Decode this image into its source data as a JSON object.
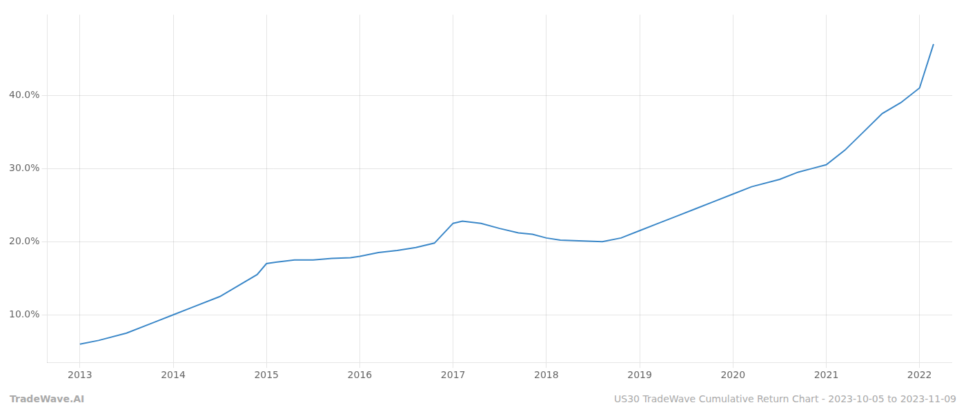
{
  "chart_data": {
    "type": "line",
    "x": [
      2013.0,
      2013.2,
      2013.5,
      2013.8,
      2014.0,
      2014.2,
      2014.5,
      2014.7,
      2014.9,
      2015.0,
      2015.1,
      2015.3,
      2015.5,
      2015.7,
      2015.9,
      2016.0,
      2016.2,
      2016.4,
      2016.6,
      2016.8,
      2017.0,
      2017.1,
      2017.3,
      2017.5,
      2017.7,
      2017.85,
      2018.0,
      2018.15,
      2018.4,
      2018.6,
      2018.8,
      2019.0,
      2019.2,
      2019.4,
      2019.6,
      2019.8,
      2020.0,
      2020.2,
      2020.5,
      2020.7,
      2020.85,
      2021.0,
      2021.2,
      2021.4,
      2021.6,
      2021.8,
      2022.0,
      2022.15
    ],
    "values": [
      6.0,
      6.5,
      7.5,
      9.0,
      10.0,
      11.0,
      12.5,
      14.0,
      15.5,
      17.0,
      17.2,
      17.5,
      17.5,
      17.7,
      17.8,
      18.0,
      18.5,
      18.8,
      19.2,
      19.8,
      22.5,
      22.8,
      22.5,
      21.8,
      21.2,
      21.0,
      20.5,
      20.2,
      20.1,
      20.0,
      20.5,
      21.5,
      22.5,
      23.5,
      24.5,
      25.5,
      26.5,
      27.5,
      28.5,
      29.5,
      30.0,
      30.5,
      32.5,
      35.0,
      37.5,
      39.0,
      41.0,
      47.0
    ],
    "color": "#3a87c8",
    "xlim": [
      2012.65,
      2022.35
    ],
    "xticks": [
      2013,
      2014,
      2015,
      2016,
      2017,
      2018,
      2019,
      2020,
      2021,
      2022
    ],
    "ylim": [
      3.5,
      51.0
    ],
    "yticks": [
      {
        "value": 10.0,
        "label": "10.0%"
      },
      {
        "value": 20.0,
        "label": "20.0%"
      },
      {
        "value": 30.0,
        "label": "30.0%"
      },
      {
        "value": 40.0,
        "label": "40.0%"
      }
    ],
    "grid": true,
    "annotations": [
      "TradeWave.AI",
      "US30 TradeWave Cumulative Return Chart - 2023-10-05 to 2023-11-09"
    ]
  }
}
